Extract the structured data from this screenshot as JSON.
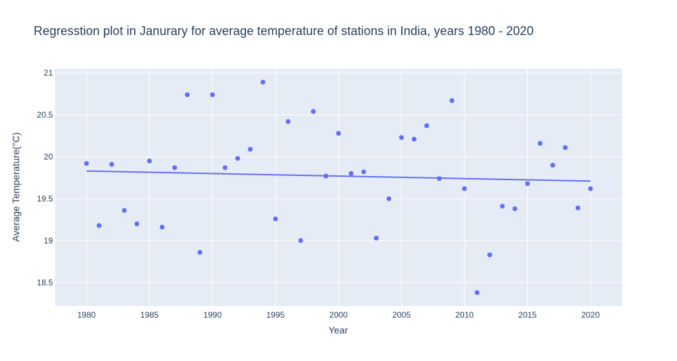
{
  "chart_data": {
    "type": "scatter",
    "title": "Regresstion plot in Janurary for average temperature of stations in India, years 1980 - 2020",
    "xlabel": "Year",
    "ylabel": "Average Temperature(°C)",
    "xlim": [
      1977.5,
      2022.5
    ],
    "ylim": [
      18.22,
      21.05
    ],
    "xticks": [
      1980,
      1985,
      1990,
      1995,
      2000,
      2005,
      2010,
      2015,
      2020
    ],
    "yticks": [
      18.5,
      19,
      19.5,
      20,
      20.5,
      21
    ],
    "ytick_labels": [
      "18.5",
      "19",
      "19.5",
      "20",
      "20.5",
      "21"
    ],
    "grid": true,
    "colors": {
      "marker": "#636efa",
      "line": "#636efa",
      "plot_bg": "#e5ecf6",
      "grid": "#ffffff",
      "text": "#2a3f5f"
    },
    "series": [
      {
        "mode": "markers",
        "x": [
          1980,
          1981,
          1982,
          1983,
          1984,
          1985,
          1986,
          1987,
          1988,
          1989,
          1990,
          1991,
          1992,
          1993,
          1994,
          1995,
          1996,
          1997,
          1998,
          1999,
          2000,
          2001,
          2002,
          2003,
          2004,
          2005,
          2006,
          2007,
          2008,
          2009,
          2010,
          2011,
          2012,
          2013,
          2014,
          2015,
          2016,
          2017,
          2018,
          2019,
          2020
        ],
        "y": [
          19.92,
          19.18,
          19.91,
          19.36,
          19.2,
          19.95,
          19.16,
          19.87,
          20.74,
          18.86,
          20.74,
          19.87,
          19.98,
          20.09,
          20.89,
          19.26,
          20.42,
          19.0,
          20.54,
          19.77,
          20.28,
          19.8,
          19.82,
          19.03,
          19.5,
          20.23,
          20.21,
          20.37,
          19.74,
          20.67,
          19.62,
          18.38,
          18.83,
          19.41,
          19.38,
          19.68,
          20.16,
          19.9,
          20.11,
          19.39,
          19.62
        ]
      },
      {
        "mode": "lines",
        "x": [
          1980,
          2020
        ],
        "y": [
          19.83,
          19.71
        ]
      }
    ]
  }
}
